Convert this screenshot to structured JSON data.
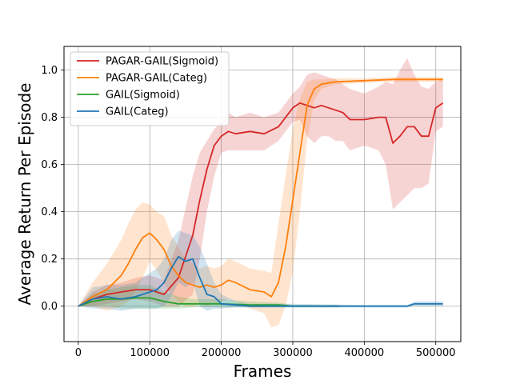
{
  "chart_data": {
    "type": "line",
    "title": "",
    "xlabel": "Frames",
    "ylabel": "Average Return Per Episode",
    "xlim": [
      -20000,
      535000
    ],
    "ylim": [
      -0.15,
      1.1
    ],
    "xticks": [
      0,
      100000,
      200000,
      300000,
      400000,
      500000
    ],
    "xtick_labels": [
      "0",
      "100000",
      "200000",
      "300000",
      "400000",
      "500000"
    ],
    "yticks": [
      0.0,
      0.2,
      0.4,
      0.6,
      0.8,
      1.0
    ],
    "ytick_labels": [
      "0.0",
      "0.2",
      "0.4",
      "0.6",
      "0.8",
      "1.0"
    ],
    "grid": true,
    "legend_position": "top-left",
    "series": [
      {
        "name": "PAGAR-GAIL(Sigmoid)",
        "color": "#d62728",
        "x": [
          0,
          20000,
          40000,
          60000,
          80000,
          100000,
          120000,
          140000,
          160000,
          170000,
          180000,
          190000,
          200000,
          210000,
          220000,
          240000,
          260000,
          280000,
          300000,
          310000,
          320000,
          330000,
          340000,
          350000,
          360000,
          370000,
          380000,
          400000,
          420000,
          430000,
          440000,
          450000,
          460000,
          470000,
          480000,
          490000,
          500000,
          510000
        ],
        "y": [
          0,
          0.03,
          0.05,
          0.06,
          0.07,
          0.07,
          0.05,
          0.12,
          0.3,
          0.45,
          0.58,
          0.68,
          0.72,
          0.74,
          0.73,
          0.74,
          0.73,
          0.76,
          0.84,
          0.86,
          0.85,
          0.84,
          0.85,
          0.84,
          0.83,
          0.82,
          0.79,
          0.79,
          0.8,
          0.8,
          0.69,
          0.72,
          0.76,
          0.76,
          0.72,
          0.72,
          0.84,
          0.86
        ],
        "upper": [
          0,
          0.06,
          0.09,
          0.1,
          0.12,
          0.13,
          0.11,
          0.28,
          0.55,
          0.65,
          0.7,
          0.75,
          0.78,
          0.82,
          0.8,
          0.82,
          0.8,
          0.82,
          0.9,
          0.93,
          0.98,
          0.99,
          0.98,
          0.97,
          0.96,
          0.94,
          0.92,
          0.9,
          0.93,
          0.95,
          0.94,
          1.0,
          1.05,
          0.98,
          0.93,
          0.92,
          0.95,
          0.96
        ],
        "lower": [
          0,
          0.0,
          0.01,
          0.02,
          0.03,
          0.02,
          0.0,
          0.0,
          0.05,
          0.2,
          0.4,
          0.55,
          0.65,
          0.66,
          0.66,
          0.66,
          0.66,
          0.7,
          0.78,
          0.79,
          0.72,
          0.69,
          0.72,
          0.72,
          0.7,
          0.7,
          0.66,
          0.68,
          0.66,
          0.6,
          0.41,
          0.44,
          0.47,
          0.5,
          0.5,
          0.52,
          0.74,
          0.76
        ]
      },
      {
        "name": "PAGAR-GAIL(Categ)",
        "color": "#ff7f0e",
        "x": [
          0,
          20000,
          40000,
          60000,
          70000,
          80000,
          90000,
          100000,
          110000,
          120000,
          130000,
          140000,
          150000,
          160000,
          170000,
          180000,
          190000,
          200000,
          210000,
          220000,
          240000,
          260000,
          270000,
          280000,
          290000,
          300000,
          310000,
          320000,
          330000,
          340000,
          360000,
          400000,
          440000,
          480000,
          510000
        ],
        "y": [
          0,
          0.04,
          0.07,
          0.13,
          0.18,
          0.24,
          0.29,
          0.31,
          0.28,
          0.24,
          0.17,
          0.13,
          0.1,
          0.09,
          0.08,
          0.09,
          0.08,
          0.09,
          0.11,
          0.1,
          0.07,
          0.06,
          0.04,
          0.1,
          0.25,
          0.45,
          0.65,
          0.85,
          0.92,
          0.94,
          0.95,
          0.955,
          0.96,
          0.96,
          0.96
        ],
        "upper": [
          0,
          0.1,
          0.18,
          0.28,
          0.35,
          0.41,
          0.44,
          0.43,
          0.4,
          0.38,
          0.3,
          0.25,
          0.2,
          0.18,
          0.16,
          0.17,
          0.16,
          0.17,
          0.2,
          0.19,
          0.16,
          0.15,
          0.14,
          0.35,
          0.55,
          0.75,
          0.88,
          0.95,
          0.96,
          0.96,
          0.965,
          0.965,
          0.97,
          0.97,
          0.97
        ],
        "lower": [
          0,
          0.0,
          -0.02,
          0.0,
          0.02,
          0.06,
          0.12,
          0.19,
          0.15,
          0.1,
          0.05,
          0.02,
          0.0,
          0.0,
          0.01,
          0.0,
          0.01,
          0.02,
          0.03,
          0.02,
          -0.01,
          -0.03,
          -0.09,
          -0.08,
          0.0,
          0.15,
          0.4,
          0.7,
          0.87,
          0.92,
          0.94,
          0.945,
          0.95,
          0.95,
          0.95
        ]
      },
      {
        "name": "GAIL(Sigmoid)",
        "color": "#2ca02c",
        "x": [
          0,
          20000,
          40000,
          60000,
          80000,
          100000,
          120000,
          140000,
          160000,
          200000,
          240000,
          280000,
          300000,
          365000
        ],
        "y": [
          0,
          0.02,
          0.03,
          0.03,
          0.035,
          0.035,
          0.02,
          0.01,
          0.01,
          0.01,
          0.005,
          0.005,
          0.0,
          0.0
        ],
        "upper": [
          0,
          0.05,
          0.07,
          0.08,
          0.09,
          0.09,
          0.06,
          0.04,
          0.03,
          0.03,
          0.02,
          0.015,
          0.005,
          0.005
        ],
        "lower": [
          0,
          0.0,
          0.0,
          -0.01,
          -0.01,
          -0.01,
          -0.01,
          -0.01,
          -0.005,
          -0.005,
          -0.005,
          -0.005,
          -0.005,
          -0.005
        ]
      },
      {
        "name": "GAIL(Categ)",
        "color": "#1f77b4",
        "x": [
          0,
          20000,
          40000,
          60000,
          80000,
          90000,
          100000,
          110000,
          120000,
          130000,
          140000,
          150000,
          160000,
          170000,
          180000,
          190000,
          200000,
          220000,
          240000,
          260000,
          280000,
          300000,
          400000,
          460000,
          470000,
          510000
        ],
        "y": [
          0,
          0.03,
          0.04,
          0.03,
          0.04,
          0.05,
          0.06,
          0.07,
          0.1,
          0.16,
          0.21,
          0.19,
          0.2,
          0.12,
          0.05,
          0.04,
          0.01,
          0.005,
          0.0,
          0.0,
          0.0,
          0.0,
          0.0,
          0.0,
          0.01,
          0.01
        ],
        "upper": [
          0,
          0.08,
          0.09,
          0.09,
          0.1,
          0.12,
          0.14,
          0.16,
          0.2,
          0.28,
          0.32,
          0.31,
          0.3,
          0.25,
          0.18,
          0.1,
          0.05,
          0.02,
          0.01,
          0.01,
          0.01,
          0.01,
          0.005,
          0.005,
          0.02,
          0.02
        ],
        "lower": [
          0,
          -0.01,
          -0.01,
          -0.02,
          -0.01,
          -0.01,
          -0.01,
          -0.01,
          0.0,
          0.04,
          0.1,
          0.08,
          0.1,
          0.0,
          -0.02,
          -0.01,
          -0.01,
          -0.005,
          -0.005,
          -0.005,
          -0.005,
          -0.005,
          -0.005,
          -0.005,
          0.0,
          0.0
        ]
      }
    ]
  }
}
